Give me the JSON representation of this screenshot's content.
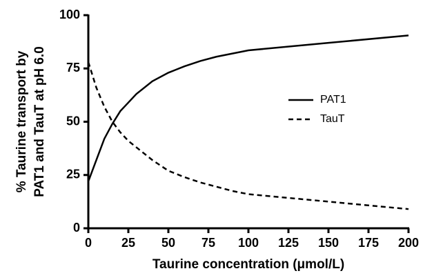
{
  "chart_data": {
    "type": "line",
    "x_label": "Taurine concentration (μmol/L)",
    "y_label": [
      "% Taurine transport by",
      "PAT1 and TauT at pH 6.0"
    ],
    "x": [
      0,
      5,
      10,
      15,
      20,
      25,
      30,
      40,
      50,
      60,
      70,
      80,
      90,
      100,
      150,
      200
    ],
    "series": [
      {
        "name": "PAT1",
        "color": "#000000",
        "line_style": "solid",
        "values": [
          22,
          32,
          42,
          49,
          55,
          59,
          63,
          69,
          73,
          76,
          78.5,
          80.5,
          82,
          83.5,
          87,
          90.5
        ]
      },
      {
        "name": "TauT",
        "color": "#000000",
        "line_style": "dashed",
        "values": [
          78,
          66,
          57,
          50,
          45,
          41,
          38,
          32,
          27,
          24,
          21.5,
          19.5,
          17.5,
          16,
          12.5,
          9
        ]
      }
    ],
    "xlim": [
      0,
      200
    ],
    "xticks": [
      0,
      25,
      50,
      75,
      100,
      125,
      150,
      175,
      200
    ],
    "ylim": [
      0,
      100
    ],
    "yticks": [
      0,
      25,
      50,
      75,
      100
    ],
    "grid": false,
    "legend_position": "right"
  }
}
